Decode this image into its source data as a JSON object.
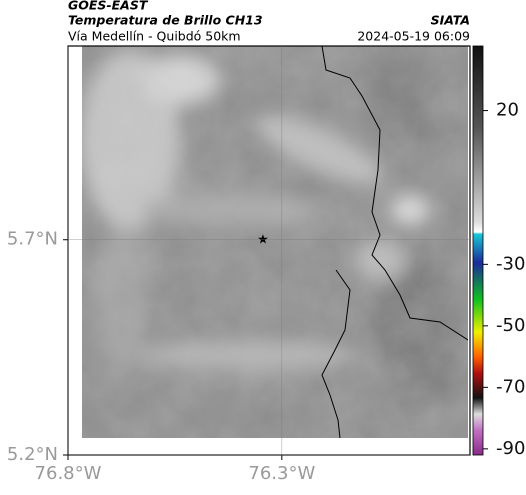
{
  "header": {
    "source": "GOES-EAST",
    "title": "Temperatura de Brillo CH13",
    "org": "SIATA",
    "subtitle": "Vía Medellín - Quibdó 50km",
    "datetime": "2024-05-19 06:09"
  },
  "map": {
    "xlim": [
      -76.8,
      -75.86
    ],
    "ylim": [
      5.2,
      6.15
    ],
    "xticks": [
      {
        "value": -76.8,
        "label": "76.8°W"
      },
      {
        "value": -76.3,
        "label": "76.3°W"
      }
    ],
    "yticks": [
      {
        "value": 5.2,
        "label": "5.2°N"
      },
      {
        "value": 5.7,
        "label": "5.7°N"
      }
    ],
    "grid": true
  },
  "colorbar": {
    "lim": [
      -92,
      41
    ],
    "ticks": [
      20,
      -30,
      -50,
      -70,
      -90
    ]
  }
}
